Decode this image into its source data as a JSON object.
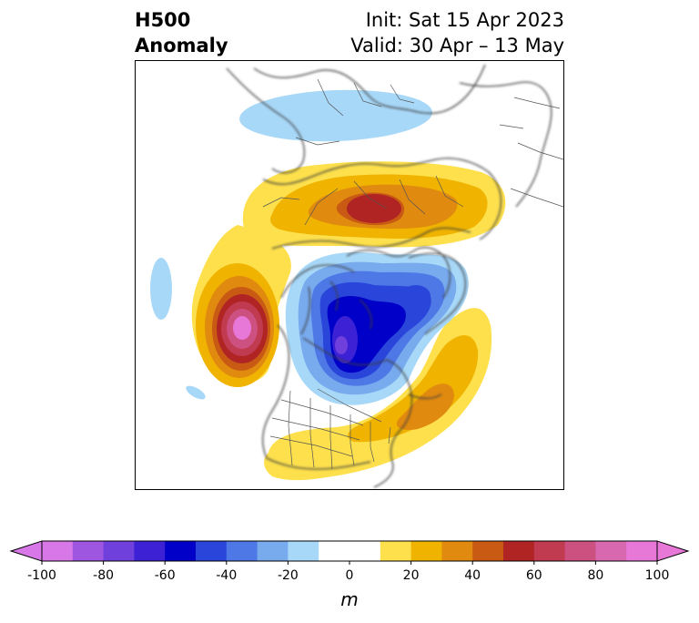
{
  "title": {
    "left_line1": "H500",
    "left_line2": "Anomaly",
    "right_line1": "Init: Sat 15 Apr 2023",
    "right_line2": "Valid: 30 Apr – 13 May"
  },
  "map": {
    "projection": "north-polar-stereographic",
    "features": [
      {
        "name": "positive-anomaly-north-pacific-ridge",
        "peak_m": 100
      },
      {
        "name": "positive-anomaly-siberia-arctic",
        "peak_m": 60
      },
      {
        "name": "positive-anomaly-western-atlantic",
        "peak_m": 40
      },
      {
        "name": "positive-anomaly-southeast-us",
        "peak_m": 20
      },
      {
        "name": "negative-anomaly-canada-greenland",
        "peak_m": -80
      },
      {
        "name": "negative-anomaly-europe",
        "peak_m": -20
      }
    ]
  },
  "colorbar": {
    "unit": "m",
    "ticks": [
      "-100",
      "-80",
      "-60",
      "-40",
      "-20",
      "0",
      "20",
      "40",
      "60",
      "80",
      "100"
    ],
    "colors": [
      "#d878e8",
      "#9e56e0",
      "#7040dc",
      "#3c22d4",
      "#0000c8",
      "#2a46da",
      "#4e78e6",
      "#78aaee",
      "#a8d8f8",
      "#ffffff",
      "#ffffff",
      "#fde04c",
      "#f0b400",
      "#e08a10",
      "#c85a14",
      "#b02424",
      "#c03a50",
      "#cc5080",
      "#d868b0",
      "#e878d8"
    ],
    "under_color": "#d878e8",
    "over_color": "#e878d8"
  }
}
